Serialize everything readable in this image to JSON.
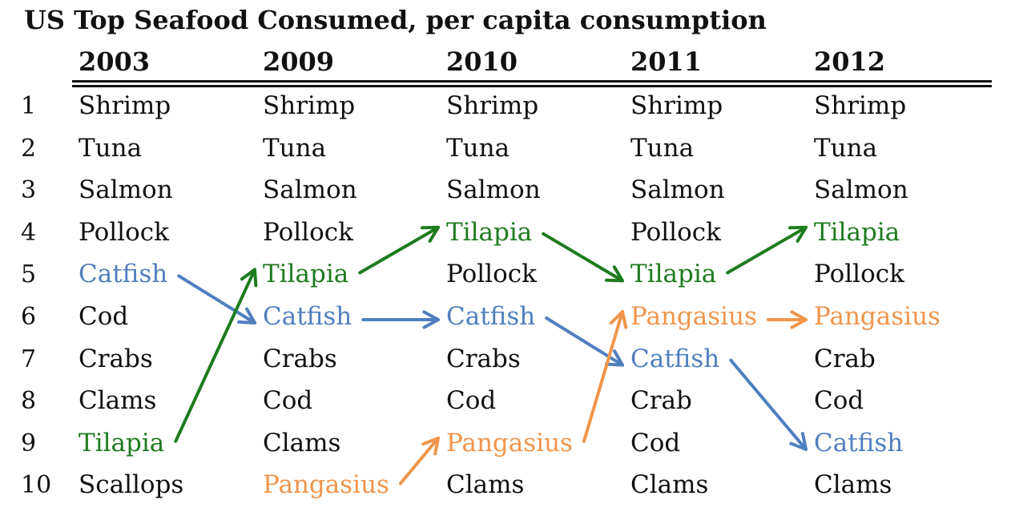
{
  "chart_data": {
    "type": "table",
    "title": "US Top Seafood Consumed, per capita consumption",
    "years": [
      "2003",
      "2009",
      "2010",
      "2011",
      "2012"
    ],
    "ranks": [
      "1",
      "2",
      "3",
      "4",
      "5",
      "6",
      "7",
      "8",
      "9",
      "10"
    ],
    "columns": [
      [
        "Shrimp",
        "Tuna",
        "Salmon",
        "Pollock",
        "Catfish",
        "Cod",
        "Crabs",
        "Clams",
        "Tilapia",
        "Scallops"
      ],
      [
        "Shrimp",
        "Tuna",
        "Salmon",
        "Pollock",
        "Tilapia",
        "Catfish",
        "Crabs",
        "Cod",
        "Clams",
        "Pangasius"
      ],
      [
        "Shrimp",
        "Tuna",
        "Salmon",
        "Tilapia",
        "Pollock",
        "Catfish",
        "Crabs",
        "Cod",
        "Pangasius",
        "Clams"
      ],
      [
        "Shrimp",
        "Tuna",
        "Salmon",
        "Pollock",
        "Tilapia",
        "Pangasius",
        "Catfish",
        "Crab",
        "Cod",
        "Clams"
      ],
      [
        "Shrimp",
        "Tuna",
        "Salmon",
        "Tilapia",
        "Pollock",
        "Pangasius",
        "Crab",
        "Cod",
        "Catfish",
        "Clams"
      ]
    ],
    "highlighted": {
      "Tilapia": "#1e7b1e",
      "Catfish": "#4f7fbf",
      "Pangasius": "#f0954a"
    },
    "arrows": [
      {
        "species": "Catfish",
        "path": [
          [
            0,
            5
          ],
          [
            1,
            6
          ],
          [
            2,
            6
          ],
          [
            3,
            7
          ],
          [
            4,
            9
          ]
        ]
      },
      {
        "species": "Tilapia",
        "path": [
          [
            0,
            9
          ],
          [
            1,
            5
          ],
          [
            2,
            4
          ],
          [
            3,
            5
          ],
          [
            4,
            4
          ]
        ]
      },
      {
        "species": "Pangasius",
        "path": [
          [
            1,
            10
          ],
          [
            2,
            9
          ],
          [
            3,
            6
          ],
          [
            4,
            6
          ]
        ]
      }
    ]
  }
}
